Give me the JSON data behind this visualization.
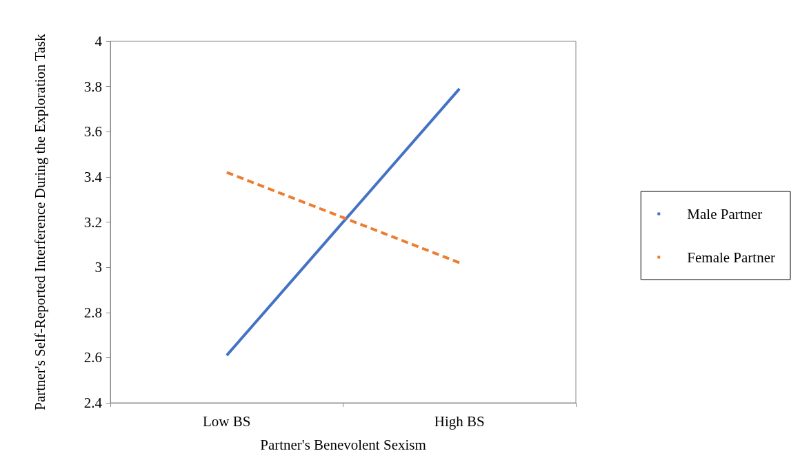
{
  "chart_data": {
    "type": "line",
    "xlabel": "Partner's Benevolent Sexism",
    "ylabel": "Partner's Self-Reported Interference During the Exploration Task",
    "categories": [
      "Low BS",
      "High BS"
    ],
    "series": [
      {
        "name": "Male Partner",
        "color": "#4472c4",
        "values": [
          2.61,
          3.79
        ],
        "line_style": "solid"
      },
      {
        "name": "Female Partner",
        "color": "#ed7d31",
        "values": [
          3.42,
          3.02
        ],
        "line_style": "dashed"
      }
    ],
    "ylim": [
      2.4,
      4
    ],
    "yticks": [
      2.4,
      2.6,
      2.8,
      3,
      3.2,
      3.4,
      3.6,
      3.8,
      4
    ],
    "grid": false,
    "legend": "right",
    "marker": "none"
  }
}
